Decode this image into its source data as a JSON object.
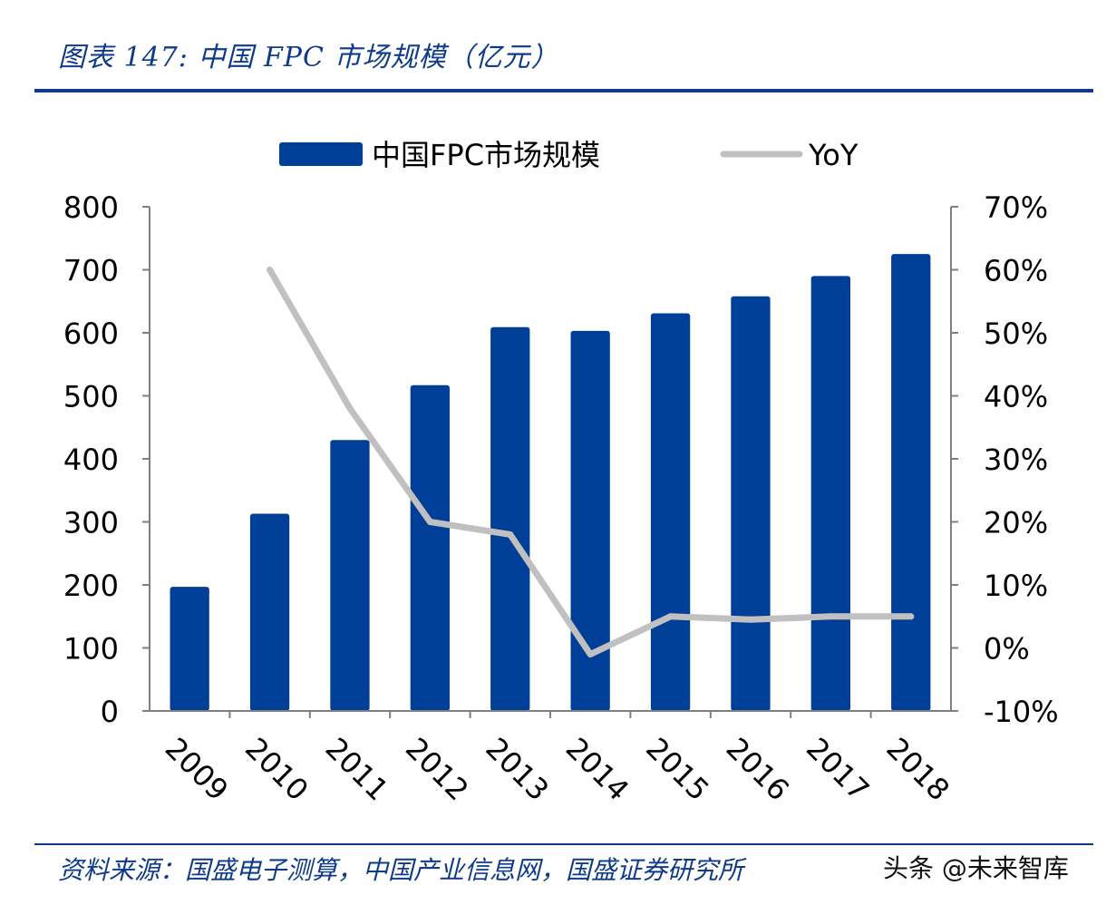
{
  "header": {
    "title": "图表 147:  中国 FPC 市场规模（亿元）"
  },
  "footer": {
    "source": "资料来源：国盛电子测算，中国产业信息网，国盛证券研究所",
    "watermark": "头条 @未来智库"
  },
  "colors": {
    "brand": "#0e3a8c",
    "bar": "#003f98",
    "line": "#c0c0c0",
    "axis": "#7f7f7f"
  },
  "chart_data": {
    "type": "bar",
    "title": "图表 147:  中国 FPC 市场规模（亿元）",
    "categories": [
      "2009",
      "2010",
      "2011",
      "2012",
      "2013",
      "2014",
      "2015",
      "2016",
      "2017",
      "2018"
    ],
    "series": [
      {
        "name": "中国FPC市场规模",
        "type": "bar",
        "axis": "left",
        "values": [
          197,
          313,
          430,
          517,
          609,
          603,
          631,
          658,
          690,
          725
        ]
      },
      {
        "name": "YoY",
        "type": "line",
        "axis": "right",
        "values": [
          null,
          0.6,
          0.38,
          0.2,
          0.18,
          -0.01,
          0.05,
          0.045,
          0.05,
          0.05
        ]
      }
    ],
    "left_axis": {
      "ylim": [
        0,
        800
      ],
      "ticks": [
        "0",
        "100",
        "200",
        "300",
        "400",
        "500",
        "600",
        "700",
        "800"
      ]
    },
    "right_axis": {
      "ylim": [
        -0.1,
        0.7
      ],
      "ticks": [
        "-10%",
        "0%",
        "10%",
        "20%",
        "30%",
        "40%",
        "50%",
        "60%",
        "70%"
      ]
    },
    "legend": {
      "position": "top-center",
      "entries": [
        "中国FPC市场规模",
        "YoY"
      ]
    },
    "grid": false,
    "xlabel": "",
    "ylabel": ""
  }
}
